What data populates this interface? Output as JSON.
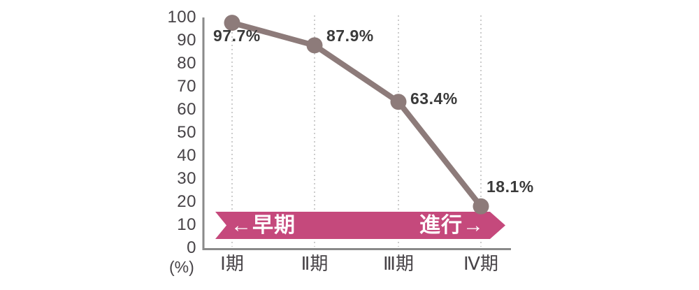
{
  "chart_data": {
    "type": "line",
    "title": "",
    "unit_label": "(%)",
    "categories": [
      "Ⅰ期",
      "Ⅱ期",
      "Ⅲ期",
      "Ⅳ期"
    ],
    "values": [
      97.7,
      87.9,
      63.4,
      18.1
    ],
    "point_labels": [
      "97.7%",
      "87.9%",
      "63.4%",
      "18.1%"
    ],
    "yticks": [
      "100",
      "90",
      "80",
      "70",
      "60",
      "50",
      "40",
      "30",
      "20",
      "10",
      "0"
    ],
    "ylim": [
      0,
      100
    ],
    "xlabel": "",
    "ylabel": "(%)",
    "grid": "dotted-vertical-gridlines",
    "legend": "none",
    "banner": {
      "left_label": "←早期",
      "right_label": "進行→"
    },
    "colors": {
      "line": "#8d7b7a",
      "marker": "#8d7b7a",
      "banner": "#c5497c",
      "banner_text": "#ffffff",
      "axis": "#8a8a8a",
      "gridline": "#cccccc",
      "data_label": "#3a3a3a",
      "tick_label": "#474347"
    }
  }
}
